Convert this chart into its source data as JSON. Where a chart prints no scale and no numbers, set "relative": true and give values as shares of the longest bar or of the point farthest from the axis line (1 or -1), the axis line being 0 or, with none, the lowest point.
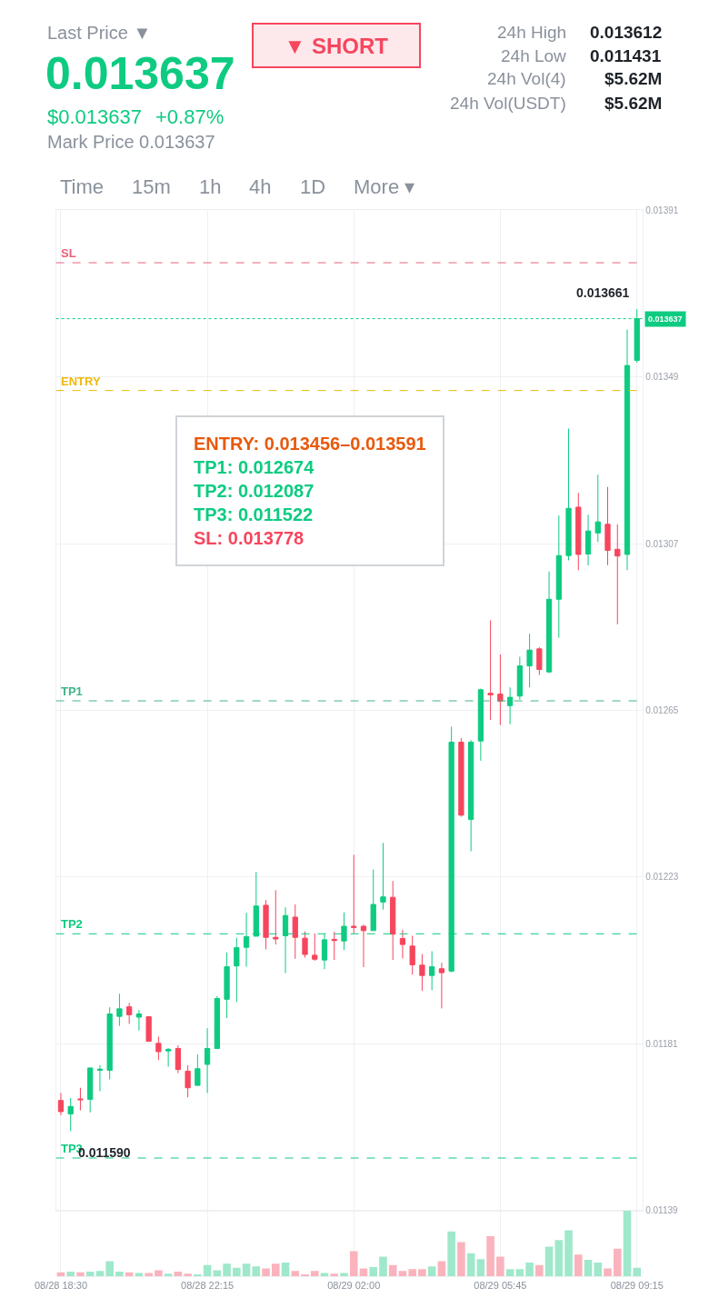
{
  "chart_data": [
    {
      "type": "other",
      "annotations": [
        "Last Price ▼",
        "0.013637",
        "$0.013637",
        "+0.87%",
        "Mark Price 0.013637",
        "▼ SHORT",
        "24h High",
        "0.013612",
        "24h Low",
        "0.011431",
        "24h Vol(4)",
        "$5.62M",
        "24h Vol(USDT)",
        "$5.62M",
        "Time",
        "15m",
        "1h",
        "4h",
        "1D",
        "More ▾"
      ]
    },
    {
      "type": "candlestick",
      "categories": [
        "08/28 18:30",
        null,
        null,
        null,
        null,
        null,
        null,
        null,
        null,
        null,
        null,
        null,
        null,
        null,
        null,
        "08/28 22:15",
        null,
        null,
        null,
        null,
        null,
        null,
        null,
        null,
        null,
        null,
        null,
        null,
        null,
        null,
        "08/29 02:00",
        null,
        null,
        null,
        null,
        null,
        null,
        null,
        null,
        null,
        null,
        null,
        null,
        null,
        null,
        "08/29 05:45",
        null,
        null,
        null,
        null,
        null,
        null,
        null,
        null,
        null,
        null,
        null,
        null,
        null,
        "08/29 09:15"
      ],
      "ohlc": [
        [
          0.011667,
          0.011686,
          0.01163,
          0.011639
        ],
        [
          0.011633,
          0.011673,
          0.01159,
          0.011652
        ],
        [
          0.011671,
          0.011699,
          0.011642,
          0.011669
        ],
        [
          0.01167,
          0.011749,
          0.011637,
          0.011749
        ],
        [
          0.011743,
          0.011756,
          0.01169,
          0.011746
        ],
        [
          0.011743,
          0.011902,
          0.01172,
          0.011885
        ],
        [
          0.011879,
          0.011936,
          0.011855,
          0.011898
        ],
        [
          0.011903,
          0.011913,
          0.01186,
          0.011883
        ],
        [
          0.011877,
          0.011895,
          0.011843,
          0.011885
        ],
        [
          0.011878,
          0.011878,
          0.011816,
          0.011816
        ],
        [
          0.011811,
          0.011828,
          0.011769,
          0.01179
        ],
        [
          0.011792,
          0.011799,
          0.011752,
          0.011796
        ],
        [
          0.011798,
          0.011806,
          0.011736,
          0.011745
        ],
        [
          0.011741,
          0.011756,
          0.011675,
          0.011699
        ],
        [
          0.011705,
          0.011783,
          0.011705,
          0.011747
        ],
        [
          0.011758,
          0.011849,
          0.011686,
          0.011798
        ],
        [
          0.011798,
          0.01193,
          0.011798,
          0.011924
        ],
        [
          0.011922,
          0.01204,
          0.011875,
          0.012004
        ],
        [
          0.012006,
          0.012077,
          0.011915,
          0.012052
        ],
        [
          0.012053,
          0.01214,
          0.012004,
          0.01208
        ],
        [
          0.012081,
          0.012243,
          0.012081,
          0.012157
        ],
        [
          0.012159,
          0.012172,
          0.012048,
          0.012078
        ],
        [
          0.012078,
          0.012197,
          0.01206,
          0.012074
        ],
        [
          0.012082,
          0.012154,
          0.011988,
          0.012133
        ],
        [
          0.012129,
          0.012161,
          0.012024,
          0.012078
        ],
        [
          0.012076,
          0.012093,
          0.012027,
          0.012035
        ],
        [
          0.012033,
          0.012088,
          0.012019,
          0.012023
        ],
        [
          0.012021,
          0.012086,
          0.011998,
          0.012072
        ],
        [
          0.012073,
          0.012092,
          0.012021,
          0.01207
        ],
        [
          0.012069,
          0.012141,
          0.012046,
          0.012106
        ],
        [
          0.012106,
          0.012286,
          0.012088,
          0.012103
        ],
        [
          0.012106,
          0.01211,
          0.012003,
          0.012095
        ],
        [
          0.012095,
          0.012249,
          0.012095,
          0.012161
        ],
        [
          0.012167,
          0.012316,
          0.012148,
          0.01218
        ],
        [
          0.012179,
          0.01222,
          0.012021,
          0.012086
        ],
        [
          0.012075,
          0.012097,
          0.012025,
          0.01206
        ],
        [
          0.012056,
          0.012082,
          0.011984,
          0.012009
        ],
        [
          0.012008,
          0.012036,
          0.011943,
          0.011982
        ],
        [
          0.011982,
          0.012043,
          0.011945,
          0.012004
        ],
        [
          0.011999,
          0.012014,
          0.011899,
          0.011989
        ],
        [
          0.011993,
          0.012609,
          0.01199,
          0.01257
        ],
        [
          0.01257,
          0.01258,
          0.012382,
          0.012386
        ],
        [
          0.012375,
          0.012575,
          0.012295,
          0.01257
        ],
        [
          0.012573,
          0.012705,
          0.012523,
          0.012702
        ],
        [
          0.012693,
          0.012877,
          0.012626,
          0.012689
        ],
        [
          0.012691,
          0.012791,
          0.012613,
          0.012673
        ],
        [
          0.012662,
          0.012708,
          0.012615,
          0.012683
        ],
        [
          0.012686,
          0.012785,
          0.012677,
          0.012762
        ],
        [
          0.012762,
          0.012843,
          0.012708,
          0.012802
        ],
        [
          0.012805,
          0.012809,
          0.012739,
          0.012753
        ],
        [
          0.012747,
          0.013,
          0.012744,
          0.01293
        ],
        [
          0.01293,
          0.013141,
          0.012833,
          0.01304
        ],
        [
          0.01304,
          0.01336,
          0.013028,
          0.013159
        ],
        [
          0.013162,
          0.013198,
          0.013003,
          0.013043
        ],
        [
          0.013044,
          0.013143,
          0.013015,
          0.013102
        ],
        [
          0.013097,
          0.013244,
          0.013074,
          0.013125
        ],
        [
          0.013119,
          0.013213,
          0.013016,
          0.013053
        ],
        [
          0.013056,
          0.013119,
          0.012867,
          0.013039
        ],
        [
          0.013043,
          0.01361,
          0.013003,
          0.013519
        ],
        [
          0.013532,
          0.013661,
          0.013526,
          0.013637
        ]
      ],
      "colors": [
        "#f6465d",
        "#0ecb81",
        "#f6465d",
        "#0ecb81",
        "#0ecb81",
        "#0ecb81",
        "#0ecb81",
        "#f6465d",
        "#0ecb81",
        "#f6465d",
        "#f6465d",
        "#0ecb81",
        "#f6465d",
        "#f6465d",
        "#0ecb81",
        "#0ecb81",
        "#0ecb81",
        "#0ecb81",
        "#0ecb81",
        "#0ecb81",
        "#0ecb81",
        "#f6465d",
        "#f6465d",
        "#0ecb81",
        "#f6465d",
        "#f6465d",
        "#f6465d",
        "#0ecb81",
        "#f6465d",
        "#0ecb81",
        "#f6465d",
        "#f6465d",
        "#0ecb81",
        "#0ecb81",
        "#f6465d",
        "#f6465d",
        "#f6465d",
        "#f6465d",
        "#0ecb81",
        "#f6465d",
        "#0ecb81",
        "#f6465d",
        "#0ecb81",
        "#0ecb81",
        "#f6465d",
        "#f6465d",
        "#0ecb81",
        "#0ecb81",
        "#0ecb81",
        "#f6465d",
        "#0ecb81",
        "#0ecb81",
        "#0ecb81",
        "#f6465d",
        "#0ecb81",
        "#0ecb81",
        "#f6465d",
        "#f6465d",
        "#0ecb81",
        "#0ecb81"
      ],
      "ylim": [
        0.01139,
        0.01391
      ],
      "yticks": [
        0.01139,
        0.01181,
        0.01223,
        0.01265,
        0.01307,
        0.01349,
        0.01391
      ],
      "grid": true,
      "tick_labels": "y",
      "ref_lines": [
        {
          "axis": "y",
          "value": 0.013778,
          "label": "SL",
          "color": "#e8607a",
          "line_style": "dashed"
        },
        {
          "axis": "y",
          "value": 0.013637,
          "label": "0.013637",
          "color": "#0ecb81",
          "line_style": "dotted"
        },
        {
          "axis": "y",
          "value": 0.013456,
          "label": "ENTRY",
          "color": "#f0b90b",
          "line_style": "dashed"
        },
        {
          "axis": "y",
          "value": 0.012674,
          "label": "TP1",
          "color": "#3fb489",
          "line_style": "dashed"
        },
        {
          "axis": "y",
          "value": 0.012087,
          "label": "TP2",
          "color": "#0ecb81",
          "line_style": "dashed"
        },
        {
          "axis": "y",
          "value": 0.011522,
          "label": "TP3",
          "color": "#0ecb81",
          "line_style": "dashed"
        }
      ],
      "annotations": [
        "0.013661",
        "0.011590",
        "ENTRY: 0.013456–0.013591",
        "TP1: 0.012674",
        "TP2: 0.012087",
        "TP3: 0.011522",
        "SL: 0.013778"
      ]
    },
    {
      "type": "bar",
      "categories": [
        "08/28 18:30",
        null,
        null,
        null,
        null,
        null,
        null,
        null,
        null,
        null,
        null,
        null,
        null,
        null,
        null,
        "08/28 22:15",
        null,
        null,
        null,
        null,
        null,
        null,
        null,
        null,
        null,
        null,
        null,
        null,
        null,
        null,
        "08/29 02:00",
        null,
        null,
        null,
        null,
        null,
        null,
        null,
        null,
        null,
        null,
        null,
        null,
        null,
        null,
        "08/29 05:45",
        null,
        null,
        null,
        null,
        null,
        null,
        null,
        null,
        null,
        null,
        null,
        null,
        null,
        "08/29 09:15"
      ],
      "values": [
        0.06,
        0.07,
        0.06,
        0.07,
        0.08,
        0.23,
        0.07,
        0.06,
        0.05,
        0.05,
        0.09,
        0.04,
        0.07,
        0.04,
        0.03,
        0.17,
        0.09,
        0.19,
        0.13,
        0.19,
        0.15,
        0.12,
        0.19,
        0.21,
        0.08,
        0.03,
        0.08,
        0.05,
        0.04,
        0.05,
        0.38,
        0.12,
        0.14,
        0.3,
        0.17,
        0.08,
        0.11,
        0.11,
        0.15,
        0.23,
        0.68,
        0.52,
        0.35,
        0.26,
        0.61,
        0.3,
        0.11,
        0.11,
        0.21,
        0.17,
        0.45,
        0.55,
        0.7,
        0.33,
        0.25,
        0.21,
        0.12,
        0.42,
        1,
        0.13
      ],
      "colors": [
        "#fab3bd",
        "#9fe8cb",
        "#fab3bd",
        "#9fe8cb",
        "#9fe8cb",
        "#9fe8cb",
        "#9fe8cb",
        "#fab3bd",
        "#9fe8cb",
        "#fab3bd",
        "#fab3bd",
        "#9fe8cb",
        "#fab3bd",
        "#fab3bd",
        "#9fe8cb",
        "#9fe8cb",
        "#9fe8cb",
        "#9fe8cb",
        "#9fe8cb",
        "#9fe8cb",
        "#9fe8cb",
        "#fab3bd",
        "#fab3bd",
        "#9fe8cb",
        "#fab3bd",
        "#fab3bd",
        "#fab3bd",
        "#9fe8cb",
        "#fab3bd",
        "#9fe8cb",
        "#fab3bd",
        "#fab3bd",
        "#9fe8cb",
        "#9fe8cb",
        "#fab3bd",
        "#fab3bd",
        "#fab3bd",
        "#fab3bd",
        "#9fe8cb",
        "#fab3bd",
        "#9fe8cb",
        "#fab3bd",
        "#9fe8cb",
        "#9fe8cb",
        "#fab3bd",
        "#fab3bd",
        "#9fe8cb",
        "#9fe8cb",
        "#9fe8cb",
        "#fab3bd",
        "#9fe8cb",
        "#9fe8cb",
        "#9fe8cb",
        "#fab3bd",
        "#9fe8cb",
        "#9fe8cb",
        "#fab3bd",
        "#fab3bd",
        "#9fe8cb",
        "#9fe8cb"
      ],
      "relative": true,
      "grid": "x",
      "tick_labels": "x"
    }
  ]
}
